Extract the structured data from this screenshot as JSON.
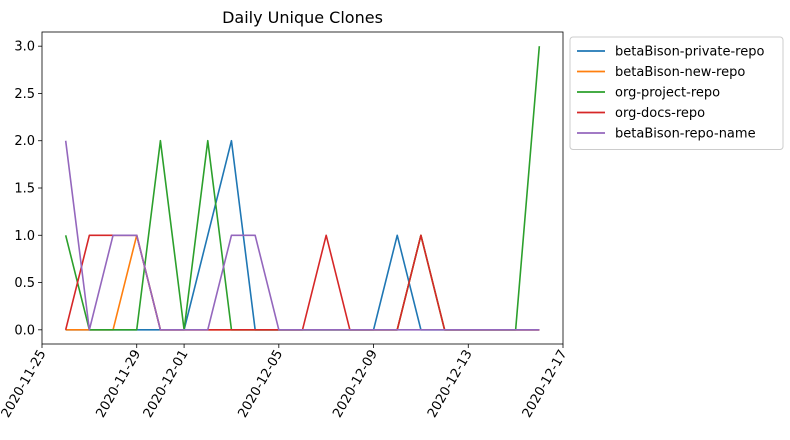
{
  "chart_data": {
    "type": "line",
    "title": "Daily Unique Clones",
    "xlabel": "",
    "ylabel": "",
    "x_type": "date",
    "xlim": [
      "2020-11-25",
      "2020-12-17"
    ],
    "ylim": [
      -0.15,
      3.15
    ],
    "x_ticks": [
      "2020-11-25",
      "2020-11-29",
      "2020-12-01",
      "2020-12-05",
      "2020-12-09",
      "2020-12-13",
      "2020-12-17"
    ],
    "y_ticks": [
      0.0,
      0.5,
      1.0,
      1.5,
      2.0,
      2.5,
      3.0
    ],
    "y_tick_labels": [
      "0.0",
      "0.5",
      "1.0",
      "1.5",
      "2.0",
      "2.5",
      "3.0"
    ],
    "x_dates": [
      "2020-11-26",
      "2020-11-27",
      "2020-11-28",
      "2020-11-29",
      "2020-11-30",
      "2020-12-01",
      "2020-12-02",
      "2020-12-03",
      "2020-12-04",
      "2020-12-05",
      "2020-12-06",
      "2020-12-07",
      "2020-12-08",
      "2020-12-09",
      "2020-12-10",
      "2020-12-11",
      "2020-12-12",
      "2020-12-13",
      "2020-12-14",
      "2020-12-15",
      "2020-12-16"
    ],
    "grid": false,
    "legend_position": "outside-upper-right",
    "series": [
      {
        "name": "betaBison-private-repo",
        "color": "#1f77b4",
        "values": [
          0,
          0,
          0,
          0,
          0,
          0,
          1,
          2,
          0,
          0,
          0,
          0,
          0,
          0,
          1,
          0,
          0,
          0,
          0,
          0,
          0
        ]
      },
      {
        "name": "betaBison-new-repo",
        "color": "#ff7f0e",
        "values": [
          0,
          0,
          0,
          1,
          0,
          0,
          0,
          0,
          0,
          0,
          0,
          0,
          0,
          0,
          0,
          1,
          0,
          0,
          0,
          0,
          0
        ]
      },
      {
        "name": "org-project-repo",
        "color": "#2ca02c",
        "values": [
          1,
          0,
          0,
          0,
          2,
          0,
          2,
          0,
          0,
          0,
          0,
          0,
          0,
          0,
          0,
          1,
          0,
          0,
          0,
          0,
          3
        ]
      },
      {
        "name": "org-docs-repo",
        "color": "#d62728",
        "values": [
          0,
          1,
          1,
          1,
          0,
          0,
          0,
          0,
          0,
          0,
          0,
          1,
          0,
          0,
          0,
          1,
          0,
          0,
          0,
          0,
          0
        ]
      },
      {
        "name": "betaBison-repo-name",
        "color": "#9467bd",
        "values": [
          2,
          0,
          1,
          1,
          0,
          0,
          0,
          1,
          1,
          0,
          0,
          0,
          0,
          0,
          0,
          0,
          0,
          0,
          0,
          0,
          0
        ]
      }
    ]
  }
}
